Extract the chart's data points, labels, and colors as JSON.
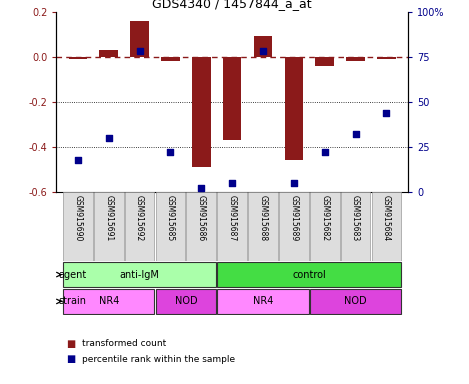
{
  "title": "GDS4340 / 1457844_a_at",
  "samples": [
    "GSM915690",
    "GSM915691",
    "GSM915692",
    "GSM915685",
    "GSM915686",
    "GSM915687",
    "GSM915688",
    "GSM915689",
    "GSM915682",
    "GSM915683",
    "GSM915684"
  ],
  "bar_values": [
    -0.01,
    0.03,
    0.16,
    -0.02,
    -0.49,
    -0.37,
    0.09,
    -0.46,
    -0.04,
    -0.02,
    -0.01
  ],
  "percentile_values": [
    18,
    30,
    78,
    22,
    2,
    5,
    78,
    5,
    22,
    32,
    44
  ],
  "ylim_left": [
    -0.6,
    0.2
  ],
  "ylim_right": [
    0,
    100
  ],
  "yticks_left": [
    -0.6,
    -0.4,
    -0.2,
    0.0,
    0.2
  ],
  "yticks_right": [
    0,
    25,
    50,
    75,
    100
  ],
  "bar_color": "#8B1A1A",
  "scatter_color": "#00008B",
  "dashed_color": "#8B1A1A",
  "agent_groups": [
    {
      "label": "anti-IgM",
      "start": 0,
      "end": 5,
      "color": "#AAFFAA"
    },
    {
      "label": "control",
      "start": 5,
      "end": 11,
      "color": "#44DD44"
    }
  ],
  "strain_groups": [
    {
      "label": "NR4",
      "start": 0,
      "end": 3,
      "color": "#FF88FF"
    },
    {
      "label": "NOD",
      "start": 3,
      "end": 5,
      "color": "#DD44DD"
    },
    {
      "label": "NR4",
      "start": 5,
      "end": 8,
      "color": "#FF88FF"
    },
    {
      "label": "NOD",
      "start": 8,
      "end": 11,
      "color": "#DD44DD"
    }
  ],
  "legend_bar_color": "#8B1A1A",
  "legend_scatter_color": "#00008B",
  "legend_bar_label": "transformed count",
  "legend_scatter_label": "percentile rank within the sample",
  "agent_label": "agent",
  "strain_label": "strain",
  "bar_width": 0.6
}
